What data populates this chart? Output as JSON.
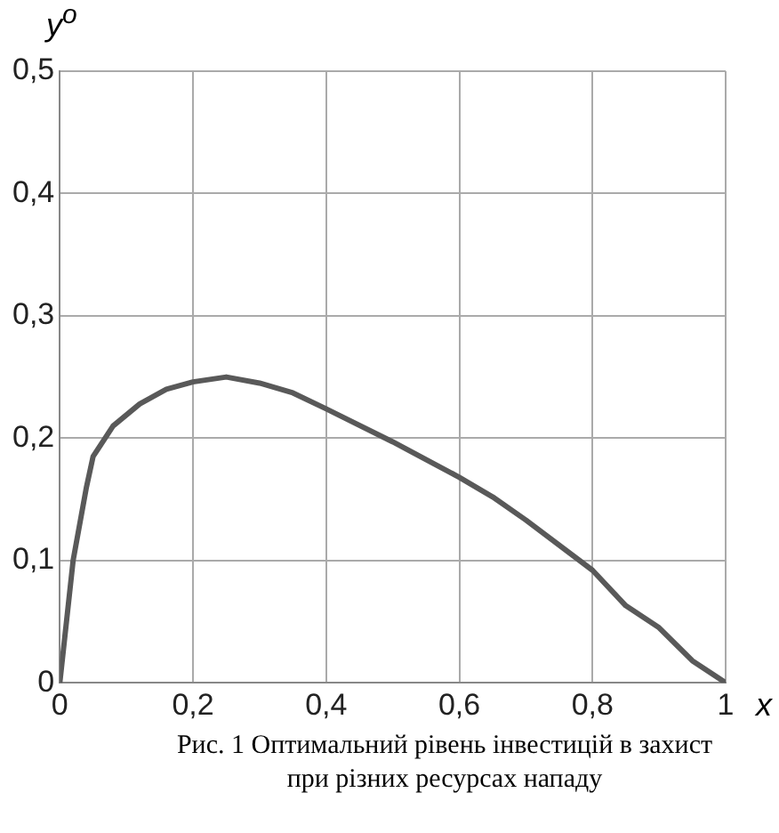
{
  "chart_data": {
    "type": "line",
    "xlabel": "x",
    "ylabel": "y$^{o}$",
    "annotations": [
      "Рис. 1 Оптимальний рівень інвестицій в захист при різних ресурсах нападу"
    ],
    "x": [
      0,
      0.02,
      0.04,
      0.05,
      0.08,
      0.12,
      0.16,
      0.2,
      0.25,
      0.3,
      0.35,
      0.4,
      0.5,
      0.6,
      0.65,
      0.7,
      0.8,
      0.85,
      0.9,
      0.95,
      1
    ],
    "series": [
      {
        "color": "#595959",
        "values": [
          0,
          0.1,
          0.16,
          0.185,
          0.21,
          0.228,
          0.24,
          0.246,
          0.25,
          0.245,
          0.237,
          0.224,
          0.197,
          0.168,
          0.152,
          0.133,
          0.092,
          0.063,
          0.045,
          0.018,
          0
        ]
      }
    ],
    "xlim": [
      0,
      1
    ],
    "ylim": [
      0,
      0.5
    ],
    "xticks": [
      0,
      {
        "value": 0.2,
        "label": "0,2"
      },
      {
        "value": 0.4,
        "label": "0,4"
      },
      {
        "value": 0.6,
        "label": "0,6"
      },
      {
        "value": 0.8,
        "label": "0,8"
      },
      1
    ],
    "yticks": [
      0,
      {
        "value": 0.1,
        "label": "0,1"
      },
      {
        "value": 0.2,
        "label": "0,2"
      },
      {
        "value": 0.3,
        "label": "0,3"
      },
      {
        "value": 0.4,
        "label": "0,4"
      },
      {
        "value": 0.5,
        "label": "0,5"
      }
    ],
    "grid": true,
    "marker": "none",
    "line_style": "solid",
    "legend": false
  }
}
